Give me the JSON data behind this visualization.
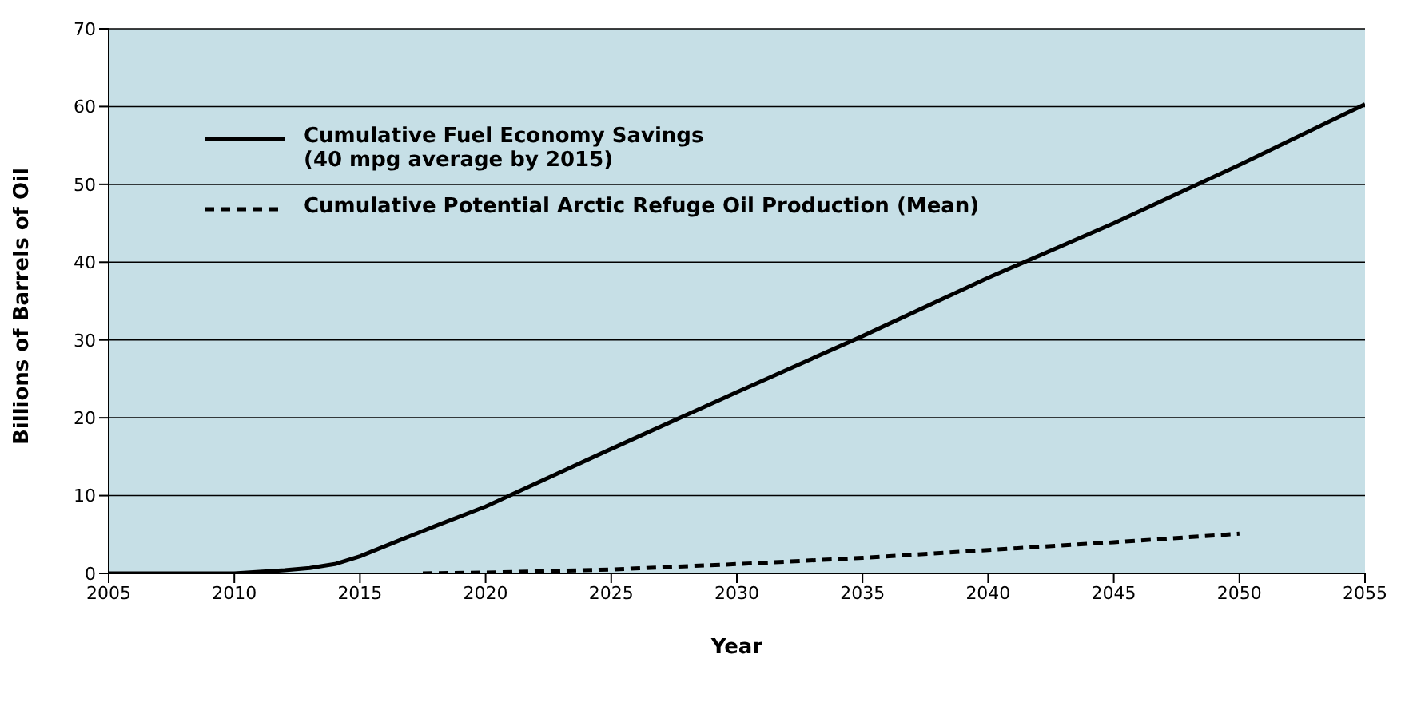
{
  "chart_data": {
    "type": "line",
    "xlabel": "Year",
    "ylabel": "Billions of Barrels of Oil",
    "xlim": [
      2005,
      2055
    ],
    "xticks": [
      2005,
      2010,
      2015,
      2020,
      2025,
      2030,
      2035,
      2040,
      2045,
      2050,
      2055
    ],
    "ylim": [
      0,
      70
    ],
    "yticks": [
      0,
      10,
      20,
      30,
      40,
      50,
      60,
      70
    ],
    "grid": "y",
    "legend": "top left",
    "marker": "none",
    "series": [
      {
        "name": "Cumulative Fuel Economy Savings\n(40 mpg average by 2015)",
        "color": "#000000",
        "line_style": "solid",
        "x": [
          2005,
          2008,
          2010,
          2011,
          2012,
          2013,
          2014,
          2015,
          2016,
          2017,
          2018,
          2020,
          2025,
          2030,
          2035,
          2040,
          2045,
          2050,
          2055
        ],
        "values": [
          0,
          0,
          0,
          0.2,
          0.4,
          0.7,
          1.2,
          2.2,
          3.5,
          4.8,
          6.1,
          8.6,
          16,
          23.3,
          30.5,
          38,
          45,
          52.5,
          60.3
        ]
      },
      {
        "name": "Cumulative Potential Arctic Refuge Oil Production (Mean)",
        "color": "#000000",
        "line_style": "dashed",
        "x": [
          2017.5,
          2020,
          2025,
          2030,
          2035,
          2040,
          2045,
          2050
        ],
        "values": [
          0,
          0.1,
          0.5,
          1.2,
          2,
          3,
          4,
          5.1
        ]
      }
    ]
  }
}
